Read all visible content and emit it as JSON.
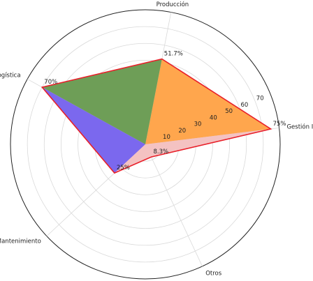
{
  "chart_data": {
    "type": "radar",
    "title": "",
    "categories": [
      "Gestión Inventarios",
      "Producción",
      "Logística",
      "Mantenimiento",
      "Otros"
    ],
    "values": [
      75,
      51.7,
      70,
      25,
      8.3
    ],
    "value_labels": [
      "75%",
      "51.7%",
      "70%",
      "25%",
      "8.3%"
    ],
    "r_ticks": [
      10,
      20,
      30,
      40,
      50,
      60,
      70
    ],
    "r_max": 80,
    "grid": true,
    "sector_colors": [
      "#FFA64D",
      "#6E9E57",
      "#7B68EE",
      "#F4C2C2",
      "#F4C2C2"
    ],
    "outline_color": "#E8202A"
  }
}
